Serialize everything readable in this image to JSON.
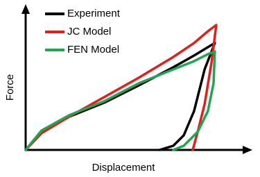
{
  "chart_data": {
    "type": "line",
    "x_label": "Displacement",
    "y_label": "Force",
    "xlim": [
      0,
      100
    ],
    "ylim": [
      0,
      100
    ],
    "series": [
      {
        "name": "Experiment",
        "color": "#000000",
        "x": [
          0,
          7.1,
          19.5,
          35.0,
          50.5,
          65.9,
          75.2,
          84.5,
          79.9,
          75.2,
          70.6,
          65.9,
          59.8
        ],
        "values": [
          0,
          12.6,
          23.3,
          33.0,
          45.1,
          57.8,
          66.0,
          74.8,
          56.3,
          27.2,
          10.2,
          2.9,
          0
        ]
      },
      {
        "name": "JC Model",
        "color": "#e0201c",
        "x": [
          0,
          7.1,
          19.5,
          35.0,
          50.5,
          65.9,
          75.2,
          81.4,
          85.1,
          83.0,
          79.9,
          76.8,
          74.6
        ],
        "values": [
          0,
          11.7,
          23.3,
          36.9,
          50.5,
          65.0,
          74.8,
          83.0,
          87.4,
          61.2,
          32.0,
          12.6,
          0
        ]
      },
      {
        "name": "FEN Model",
        "color": "#21a453",
        "x": [
          0,
          7.1,
          19.5,
          35.0,
          50.5,
          65.9,
          75.2,
          81.4,
          84.5,
          83.9,
          81.4,
          76.8,
          70.6,
          65.9
        ],
        "values": [
          0,
          13.6,
          24.3,
          34.0,
          46.6,
          56.3,
          62.1,
          67.0,
          68.9,
          46.6,
          27.2,
          12.6,
          2.9,
          0
        ]
      }
    ]
  }
}
